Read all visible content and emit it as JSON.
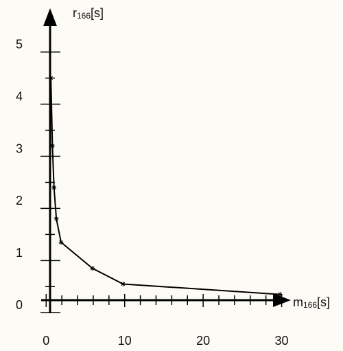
{
  "chart_data": {
    "type": "line",
    "x_label": {
      "symbol": "m",
      "subscript": "166",
      "unit": "[s]"
    },
    "y_label": {
      "symbol": "r",
      "subscript": "166",
      "unit": "[s]"
    },
    "x": [
      0.6,
      0.8,
      1.0,
      1.3,
      1.9,
      5.9,
      9.8,
      29.8
    ],
    "series": [
      {
        "color": "#000000",
        "values": [
          4.5,
          3.2,
          2.4,
          1.8,
          1.35,
          0.85,
          0.55,
          0.35
        ]
      }
    ],
    "xlim": [
      0.5,
      31
    ],
    "ylim": [
      0.24,
      5.8
    ],
    "xticks": [
      0,
      10,
      20,
      30
    ],
    "xminor": [
      2,
      4,
      6,
      8,
      12,
      14,
      16,
      18,
      22,
      24,
      26,
      28
    ],
    "yticks": [
      0,
      1,
      2,
      3,
      4,
      5
    ],
    "yminor": [
      0.5,
      1.5,
      2.5,
      3.5,
      4.5
    ],
    "markers": true
  }
}
